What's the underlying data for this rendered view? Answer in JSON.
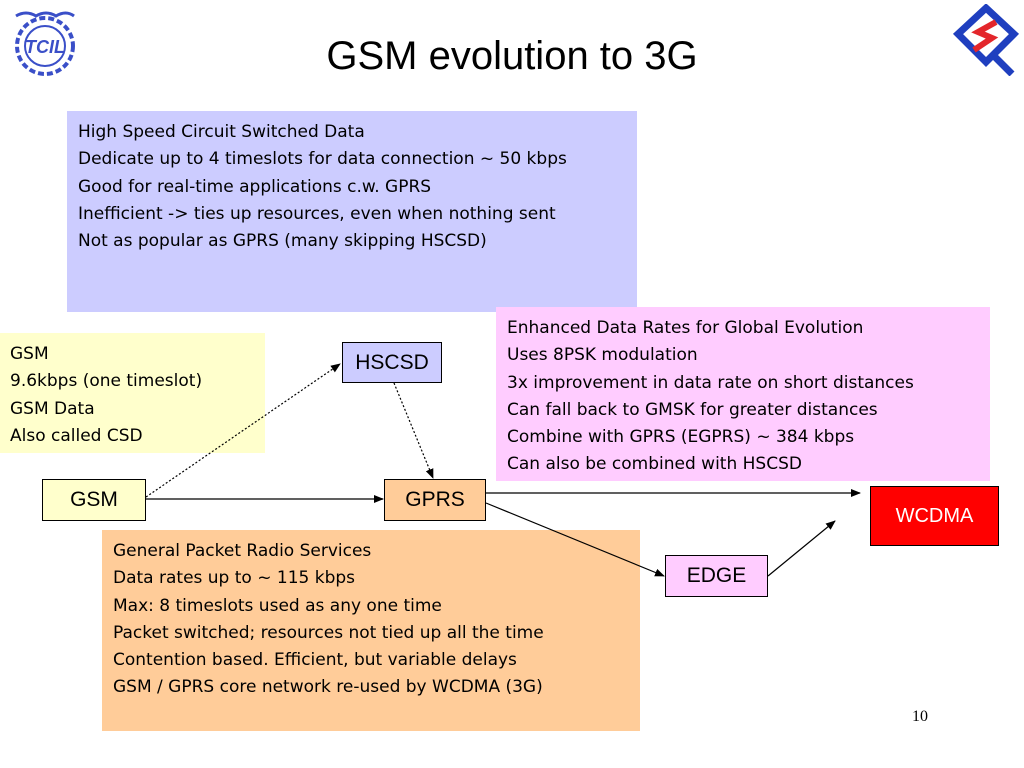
{
  "title": "GSM evolution to 3G",
  "page_number": "10",
  "logos": {
    "left": {
      "icon": "tcil-logo-icon",
      "text": "TCIL",
      "color": "#3a4fc8"
    },
    "right": {
      "icon": "q-logo-icon",
      "color": "#1f3fbf",
      "accent": "#e3262b"
    }
  },
  "boxes": {
    "hscsd": {
      "heading": "High Speed Circuit Switched Data",
      "lines": [
        "Dedicate up to 4 timeslots for data connection ~ 50 kbps",
        "Good for real-time applications c.w. GPRS",
        "Inefficient -> ties up resources, even when nothing sent",
        "Not as popular as GPRS (many skipping HSCSD)"
      ],
      "color": "#ccccff"
    },
    "edge": {
      "heading": "Enhanced Data Rates for Global Evolution",
      "lines": [
        "Uses 8PSK modulation",
        "3x improvement in data rate on short distances",
        "Can fall back to GMSK for greater distances",
        "Combine with GPRS (EGPRS) ~ 384 kbps",
        "Can also be combined with HSCSD"
      ],
      "color": "#ffccff"
    },
    "gsm": {
      "heading": "GSM",
      "lines": [
        "9.6kbps (one timeslot)",
        "GSM Data",
        "Also called CSD"
      ],
      "color": "#ffffcc"
    },
    "gprs": {
      "heading": "General Packet Radio Services",
      "lines": [
        "Data rates up to ~ 115 kbps",
        "Max: 8 timeslots used as any one time",
        "Packet switched; resources not tied up all the time",
        "Contention based.  Efficient, but variable delays",
        "GSM / GPRS core network re-used by WCDMA (3G)"
      ],
      "color": "#ffcc99"
    }
  },
  "nodes": {
    "gsm": "GSM",
    "hscsd": "HSCSD",
    "gprs": "GPRS",
    "edge": "EDGE",
    "wcdma": "WCDMA"
  }
}
